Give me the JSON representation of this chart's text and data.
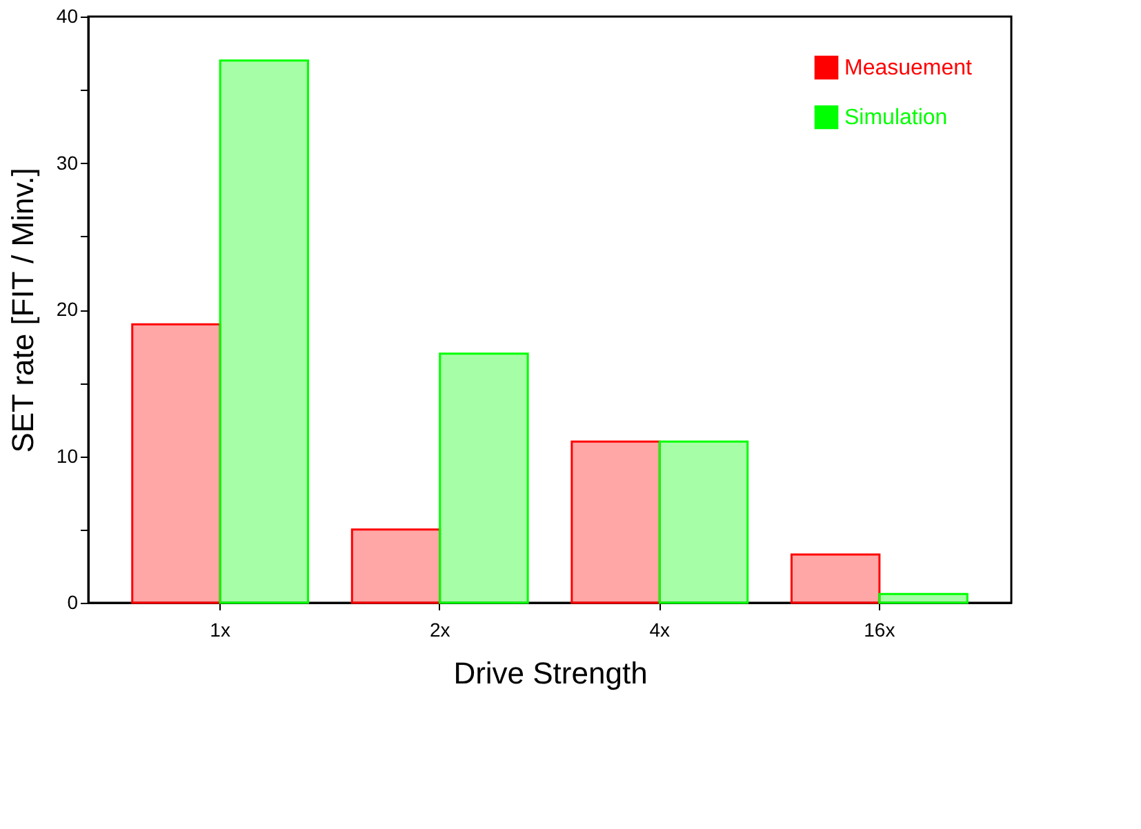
{
  "chart_data": {
    "type": "bar",
    "xlabel": "Drive Strength",
    "ylabel": "SET rate [FIT / Minv.]",
    "categories": [
      "1x",
      "2x",
      "4x",
      "16x"
    ],
    "series": [
      {
        "name": "Measuement",
        "color": "#ff0000",
        "values": [
          19,
          5,
          11,
          3.3
        ]
      },
      {
        "name": "Simulation",
        "color": "#00ff00",
        "values": [
          37,
          17,
          11,
          0.6
        ]
      }
    ],
    "ylim": [
      0,
      40
    ],
    "yticks": [
      0,
      {
        "value": 5,
        "label": null
      },
      10,
      {
        "value": 15,
        "label": null
      },
      20,
      {
        "value": 25,
        "label": null
      },
      30,
      {
        "value": 35,
        "label": null
      },
      40
    ],
    "grid": false,
    "legend": "top right"
  }
}
